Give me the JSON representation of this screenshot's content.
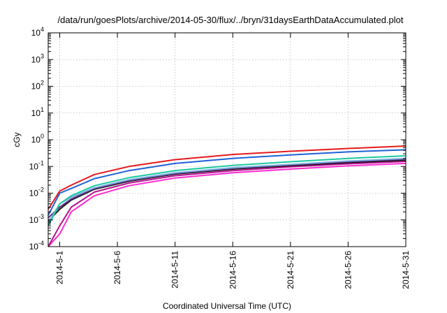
{
  "chart_data": {
    "type": "line",
    "title": "/data/run/goesPlots/archive/2014-05-30/flux/../bryn/31daysEarthDataAccumulated.plot",
    "xlabel": "Coordinated Universal Time (UTC)",
    "ylabel": "cGy",
    "y_scale": "log",
    "ylim": [
      0.0001,
      10000
    ],
    "y_ticks": [
      {
        "value": 0.0001,
        "base": "10",
        "exp": "-4"
      },
      {
        "value": 0.001,
        "base": "10",
        "exp": "-3"
      },
      {
        "value": 0.01,
        "base": "10",
        "exp": "-2"
      },
      {
        "value": 0.1,
        "base": "10",
        "exp": "-1"
      },
      {
        "value": 1,
        "base": "10",
        "exp": "0"
      },
      {
        "value": 10,
        "base": "10",
        "exp": "1"
      },
      {
        "value": 100,
        "base": "10",
        "exp": "2"
      },
      {
        "value": 1000,
        "base": "10",
        "exp": "3"
      },
      {
        "value": 10000,
        "base": "10",
        "exp": "4"
      }
    ],
    "xlim": [
      "2014-04-30",
      "2014-05-31"
    ],
    "x_ticks": [
      {
        "date": "2014-05-01",
        "label": "2014-5-1"
      },
      {
        "date": "2014-05-06",
        "label": "2014-5-6"
      },
      {
        "date": "2014-05-11",
        "label": "2014-5-11"
      },
      {
        "date": "2014-05-16",
        "label": "2014-5-16"
      },
      {
        "date": "2014-05-21",
        "label": "2014-5-21"
      },
      {
        "date": "2014-05-26",
        "label": "2014-5-26"
      },
      {
        "date": "2014-05-31",
        "label": "2014-5-31"
      }
    ],
    "grid": true,
    "legend": "none",
    "series": [
      {
        "color": "#e41a1c",
        "points": [
          [
            "2014-04-30",
            0.0025
          ],
          [
            "2014-05-01",
            0.012
          ],
          [
            "2014-05-02",
            0.02
          ],
          [
            "2014-05-04",
            0.05
          ],
          [
            "2014-05-07",
            0.1
          ],
          [
            "2014-05-11",
            0.18
          ],
          [
            "2014-05-16",
            0.28
          ],
          [
            "2014-05-21",
            0.37
          ],
          [
            "2014-05-26",
            0.47
          ],
          [
            "2014-05-31",
            0.58
          ]
        ]
      },
      {
        "color": "#1f62d6",
        "points": [
          [
            "2014-04-30",
            0.0015
          ],
          [
            "2014-05-01",
            0.01
          ],
          [
            "2014-05-02",
            0.015
          ],
          [
            "2014-05-04",
            0.035
          ],
          [
            "2014-05-07",
            0.07
          ],
          [
            "2014-05-11",
            0.13
          ],
          [
            "2014-05-16",
            0.2
          ],
          [
            "2014-05-21",
            0.27
          ],
          [
            "2014-05-26",
            0.35
          ],
          [
            "2014-05-31",
            0.42
          ]
        ]
      },
      {
        "color": "#1cc9a0",
        "points": [
          [
            "2014-04-30",
            0.0006
          ],
          [
            "2014-05-01",
            0.004
          ],
          [
            "2014-05-02",
            0.008
          ],
          [
            "2014-05-04",
            0.019
          ],
          [
            "2014-05-07",
            0.038
          ],
          [
            "2014-05-11",
            0.07
          ],
          [
            "2014-05-16",
            0.11
          ],
          [
            "2014-05-21",
            0.15
          ],
          [
            "2014-05-26",
            0.2
          ],
          [
            "2014-05-31",
            0.25
          ]
        ]
      },
      {
        "color": "#7fb0e0",
        "points": [
          [
            "2014-04-30",
            0.0008
          ],
          [
            "2014-05-01",
            0.004
          ],
          [
            "2014-05-02",
            0.007
          ],
          [
            "2014-05-04",
            0.016
          ],
          [
            "2014-05-07",
            0.032
          ],
          [
            "2014-05-11",
            0.058
          ],
          [
            "2014-05-16",
            0.09
          ],
          [
            "2014-05-21",
            0.12
          ],
          [
            "2014-05-26",
            0.16
          ],
          [
            "2014-05-31",
            0.2
          ]
        ]
      },
      {
        "color": "#5a2a82",
        "points": [
          [
            "2014-04-30",
            0.0012
          ],
          [
            "2014-05-01",
            0.003
          ],
          [
            "2014-05-02",
            0.006
          ],
          [
            "2014-05-04",
            0.015
          ],
          [
            "2014-05-07",
            0.03
          ],
          [
            "2014-05-11",
            0.055
          ],
          [
            "2014-05-16",
            0.085
          ],
          [
            "2014-05-21",
            0.115
          ],
          [
            "2014-05-26",
            0.15
          ],
          [
            "2014-05-31",
            0.185
          ]
        ]
      },
      {
        "color": "#1a1a1a",
        "points": [
          [
            "2014-04-30",
            0.0009
          ],
          [
            "2014-05-01",
            0.0025
          ],
          [
            "2014-05-02",
            0.0055
          ],
          [
            "2014-05-04",
            0.014
          ],
          [
            "2014-05-07",
            0.028
          ],
          [
            "2014-05-11",
            0.052
          ],
          [
            "2014-05-16",
            0.08
          ],
          [
            "2014-05-21",
            0.108
          ],
          [
            "2014-05-26",
            0.14
          ],
          [
            "2014-05-31",
            0.17
          ]
        ]
      },
      {
        "color": "#b4128a",
        "points": [
          [
            "2014-04-30",
            0.0001
          ],
          [
            "2014-05-01",
            0.0006
          ],
          [
            "2014-05-02",
            0.003
          ],
          [
            "2014-05-04",
            0.011
          ],
          [
            "2014-05-07",
            0.024
          ],
          [
            "2014-05-11",
            0.045
          ],
          [
            "2014-05-16",
            0.07
          ],
          [
            "2014-05-21",
            0.097
          ],
          [
            "2014-05-26",
            0.125
          ],
          [
            "2014-05-31",
            0.155
          ]
        ]
      },
      {
        "color": "#ff2bd0",
        "points": [
          [
            "2014-04-30",
            0.0001
          ],
          [
            "2014-05-01",
            0.0003
          ],
          [
            "2014-05-02",
            0.002
          ],
          [
            "2014-05-04",
            0.008
          ],
          [
            "2014-05-07",
            0.019
          ],
          [
            "2014-05-11",
            0.037
          ],
          [
            "2014-05-16",
            0.058
          ],
          [
            "2014-05-21",
            0.08
          ],
          [
            "2014-05-26",
            0.105
          ],
          [
            "2014-05-31",
            0.13
          ]
        ]
      }
    ]
  }
}
